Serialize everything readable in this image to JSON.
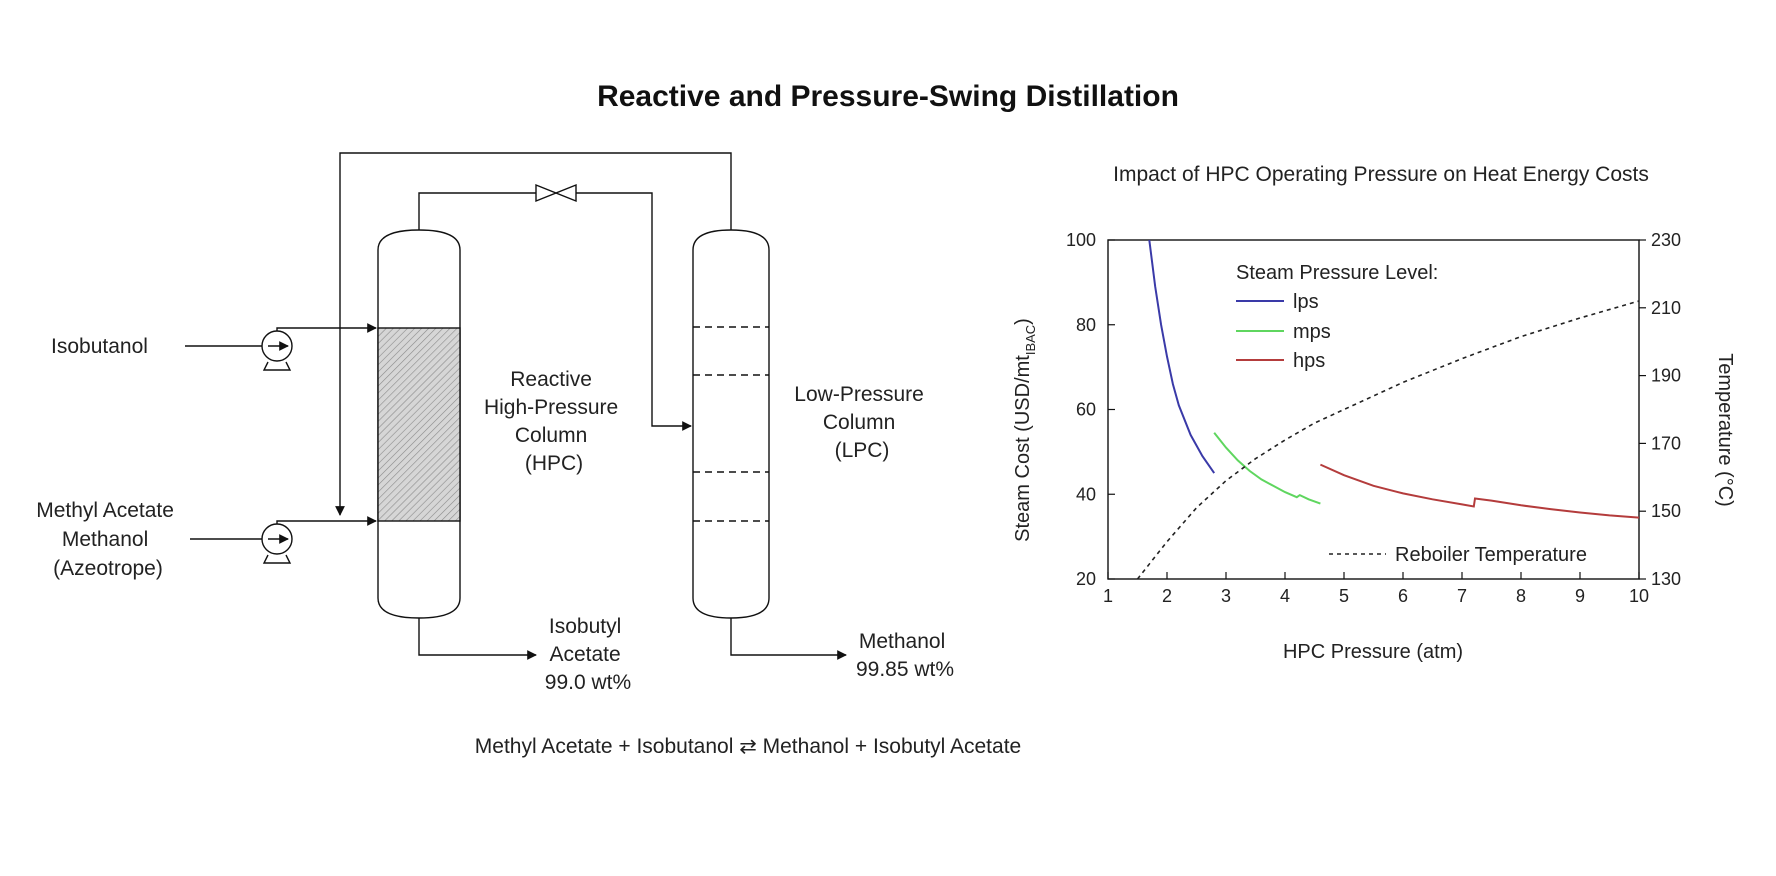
{
  "title": "Reactive and Pressure-Swing Distillation",
  "diagram": {
    "feeds": {
      "isobutanol": "Isobutanol",
      "azeo_line1": "Methyl Acetate",
      "azeo_line2": "Methanol",
      "azeo_line3": "(Azeotrope)"
    },
    "hpc_label": [
      "Reactive",
      "High-Pressure",
      "Column",
      "(HPC)"
    ],
    "lpc_label": [
      "Low-Pressure",
      "Column",
      "(LPC)"
    ],
    "product_hpc": [
      "Isobutyl",
      "Acetate",
      "99.0 wt%"
    ],
    "product_lpc": [
      "Methanol",
      "99.85 wt%"
    ],
    "equation": "Methyl Acetate + Isobutanol ⇄ Methanol + Isobutyl Acetate"
  },
  "chart_data": {
    "type": "line",
    "title": "Impact of HPC Operating Pressure on Heat Energy Costs",
    "xlabel": "HPC Pressure (atm)",
    "ylabel_main": "Steam Cost (USD/mt",
    "ylabel_sub": "IBAC",
    "ylabel_end": ")",
    "y2label": "Temperature (°C)",
    "xlim": [
      1,
      10
    ],
    "ylim": [
      20,
      100
    ],
    "y2lim": [
      130,
      230
    ],
    "xticks": [
      1,
      2,
      3,
      4,
      5,
      6,
      7,
      8,
      9,
      10
    ],
    "yticks": [
      20,
      40,
      60,
      80,
      100
    ],
    "y2ticks": [
      130,
      150,
      170,
      190,
      210,
      230
    ],
    "legend_title": "Steam Pressure Level:",
    "series": [
      {
        "name": "lps",
        "color": "#3a3aa8",
        "axis": "left",
        "x": [
          1.7,
          1.8,
          1.9,
          2.0,
          2.1,
          2.2,
          2.4,
          2.6,
          2.8
        ],
        "y": [
          100,
          89,
          80,
          72.5,
          66,
          61,
          54,
          49,
          45
        ]
      },
      {
        "name": "mps",
        "color": "#5fd65f",
        "axis": "left",
        "x": [
          2.8,
          3.0,
          3.2,
          3.4,
          3.6,
          3.8,
          4.0,
          4.2,
          4.25,
          4.4,
          4.6
        ],
        "y": [
          54.5,
          51,
          48,
          45.5,
          43.5,
          42,
          40.5,
          39.3,
          39.8,
          38.8,
          37.8
        ]
      },
      {
        "name": "hps",
        "color": "#b43c3c",
        "axis": "left",
        "x": [
          4.6,
          5.0,
          5.5,
          6.0,
          6.5,
          7.0,
          7.2,
          7.22,
          7.5,
          8.0,
          8.5,
          9.0,
          9.5,
          10.0
        ],
        "y": [
          47,
          44.5,
          42,
          40.2,
          38.8,
          37.6,
          37.1,
          39.0,
          38.5,
          37.4,
          36.5,
          35.7,
          35.0,
          34.5
        ]
      },
      {
        "name": "Reboiler Temperature",
        "color": "#222222",
        "axis": "right",
        "dash": true,
        "x": [
          1.5,
          2.0,
          2.5,
          3.0,
          3.5,
          4.0,
          4.5,
          5.0,
          6.0,
          7.0,
          8.0,
          9.0,
          10.0
        ],
        "y": [
          130,
          141,
          151,
          159,
          165.5,
          171,
          176,
          180,
          188,
          195,
          201.5,
          207,
          212
        ]
      }
    ]
  }
}
